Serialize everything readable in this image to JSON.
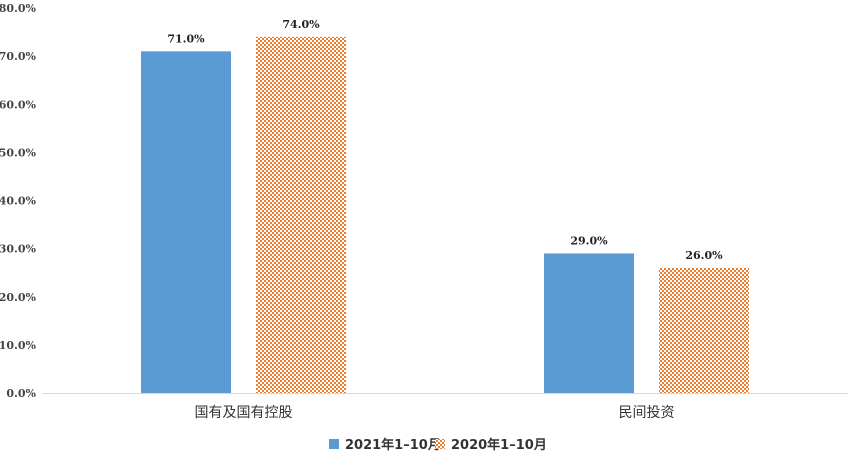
{
  "chart_data": {
    "type": "bar",
    "categories": [
      "国有及国有控股",
      "民间投资"
    ],
    "series": [
      {
        "name": "2021年1–10月",
        "values": [
          71.0,
          29.0
        ],
        "color": "#5b9bd5",
        "pattern": "solid"
      },
      {
        "name": "2020年1–10月",
        "values": [
          74.0,
          26.0
        ],
        "color": "#ed7d31",
        "pattern": "checker"
      }
    ],
    "data_labels": [
      [
        "71.0%",
        "29.0%"
      ],
      [
        "74.0%",
        "26.0%"
      ]
    ],
    "y_ticks": [
      "0.0%",
      "10.0%",
      "20.0%",
      "30.0%",
      "40.0%",
      "50.0%",
      "60.0%",
      "70.0%",
      "80.0%"
    ],
    "ylim": [
      0,
      80
    ],
    "grid": false,
    "legend_position": "bottom",
    "title": "",
    "xlabel": "",
    "ylabel": ""
  }
}
